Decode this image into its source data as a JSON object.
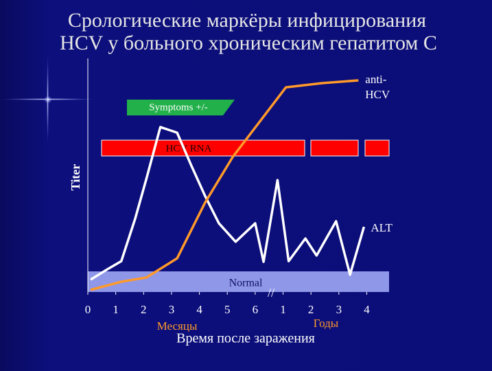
{
  "chart_data": {
    "type": "line",
    "title": [
      "Срологические маркёры инфицирования",
      "HCV у больного  хроническим гепатитом С"
    ],
    "y_label": "Titer",
    "x_label": "Время после заражения",
    "x_unit_labels": [
      "Месяцы",
      "Годы"
    ],
    "annotations": {
      "symptoms": "Symptoms +/-",
      "rna": "HCV RNA",
      "normal": "Normal",
      "break": "//"
    },
    "xlim": [
      0,
      10.8
    ],
    "ylim": [
      0,
      100
    ],
    "xticks": [
      0,
      1,
      2,
      3,
      4,
      5,
      6,
      {
        "value": 7,
        "label": "1"
      },
      {
        "value": 8,
        "label": "2"
      },
      {
        "value": 9,
        "label": "3"
      },
      {
        "value": 10,
        "label": "4"
      }
    ],
    "series": [
      {
        "name": "ALT",
        "color": "#ffffff",
        "x": [
          0.1,
          0.7,
          1.2,
          1.7,
          2.1,
          2.6,
          3.2,
          3.7,
          4.2,
          4.7,
          5.3,
          6.0,
          6.3,
          6.8,
          7.2,
          7.8,
          8.2,
          8.9,
          9.4,
          9.9
        ],
        "values": [
          5.3,
          9.7,
          13.2,
          31.5,
          48.5,
          70.6,
          68.2,
          54.4,
          41.2,
          29.4,
          21.5,
          29.4,
          12.9,
          47.9,
          13.2,
          22.9,
          15.6,
          30.3,
          7.4,
          27.9
        ]
      },
      {
        "name": "anti-HCV",
        "color": "#ff9a2a",
        "x": [
          0.1,
          1.2,
          2.1,
          3.2,
          4.2,
          5.2,
          6.2,
          7.1,
          8.4,
          9.7
        ],
        "values": [
          0.9,
          4.4,
          6.2,
          14.4,
          38.2,
          57.9,
          73.5,
          87.6,
          89.4,
          90.6
        ]
      }
    ]
  }
}
